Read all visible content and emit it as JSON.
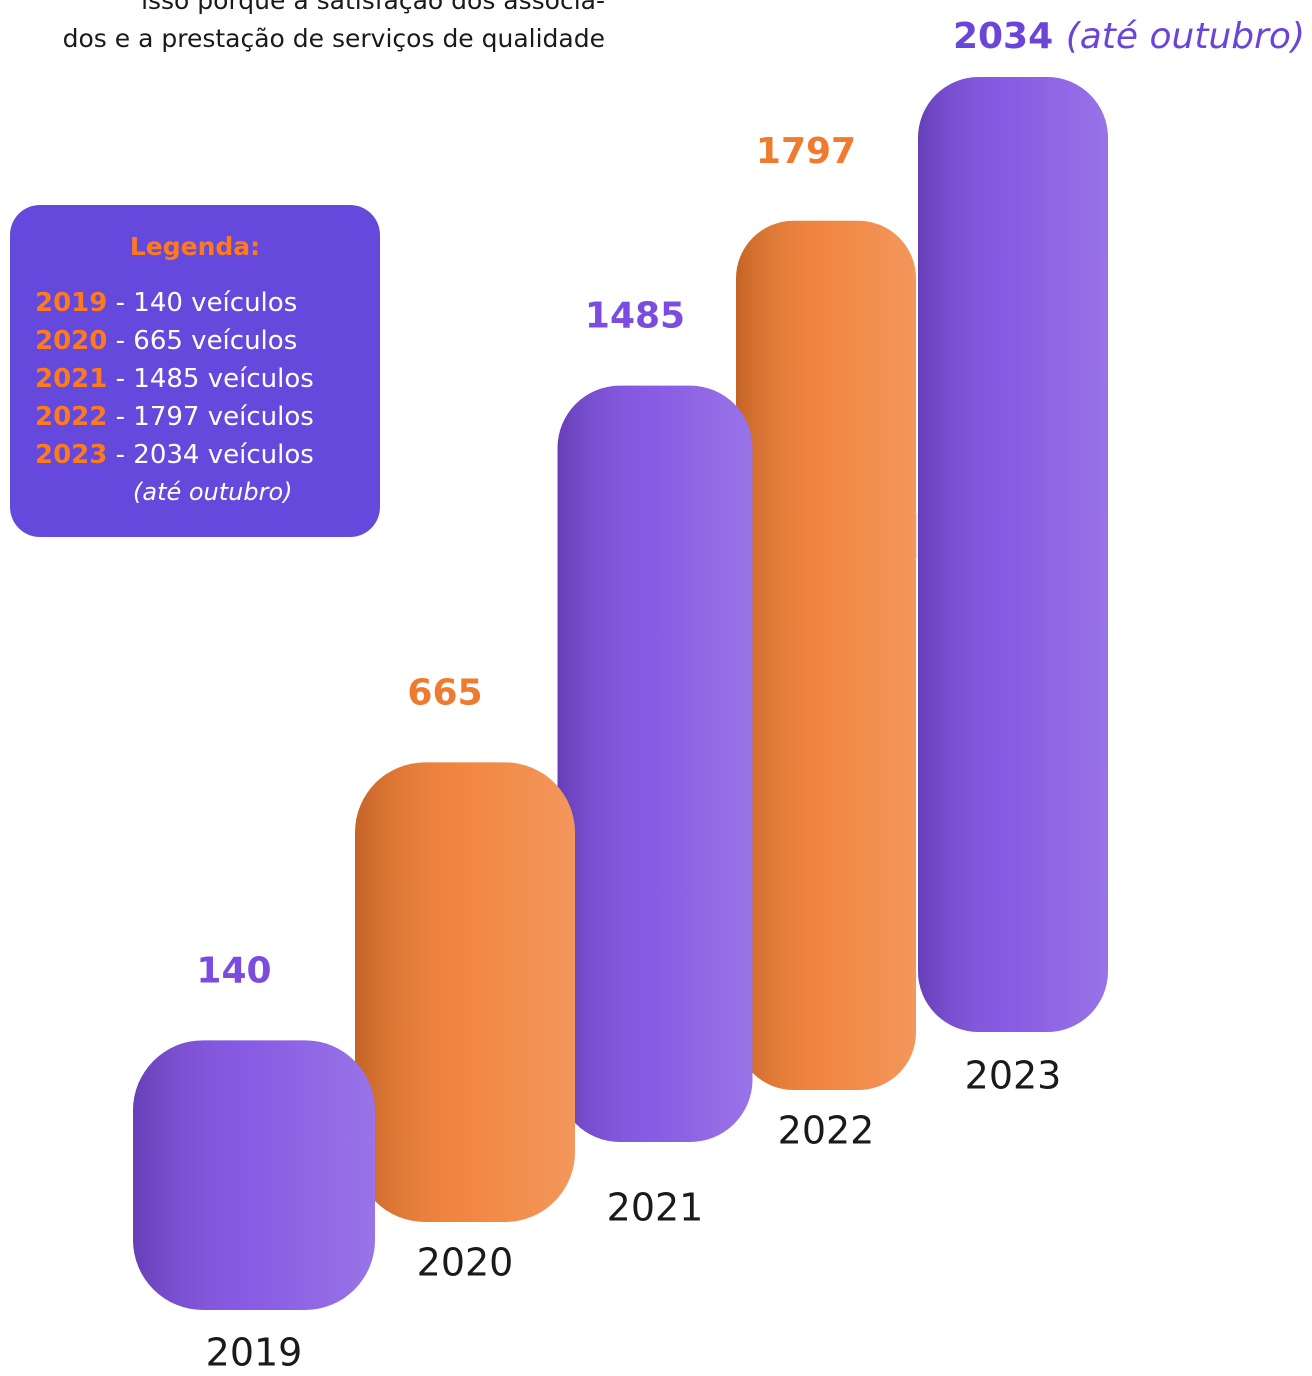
{
  "intro": {
    "lines": [
      "isso porque a satisfação dos associa-",
      "dos e a prestação de serviços de qualidade"
    ]
  },
  "legend": {
    "title": "Legenda:",
    "items": [
      {
        "year": "2019",
        "text": " - 140 veículos"
      },
      {
        "year": "2020",
        "text": " - 665 veículos"
      },
      {
        "year": "2021",
        "text": " - 1485 veículos"
      },
      {
        "year": "2022",
        "text": " - 1797 veículos"
      },
      {
        "year": "2023",
        "text": " - 2034 veículos"
      }
    ],
    "note": "(até outubro)"
  },
  "chart_data": {
    "type": "bar",
    "categories": [
      "2019",
      "2020",
      "2021",
      "2022",
      "2023"
    ],
    "values": [
      140,
      665,
      1485,
      1797,
      2034
    ],
    "colors": [
      "#7c4ce0",
      "#f07a2e",
      "#7c4ce0",
      "#f07a2e",
      "#7c4ce0"
    ],
    "last_label_note": "(até outubro)"
  }
}
